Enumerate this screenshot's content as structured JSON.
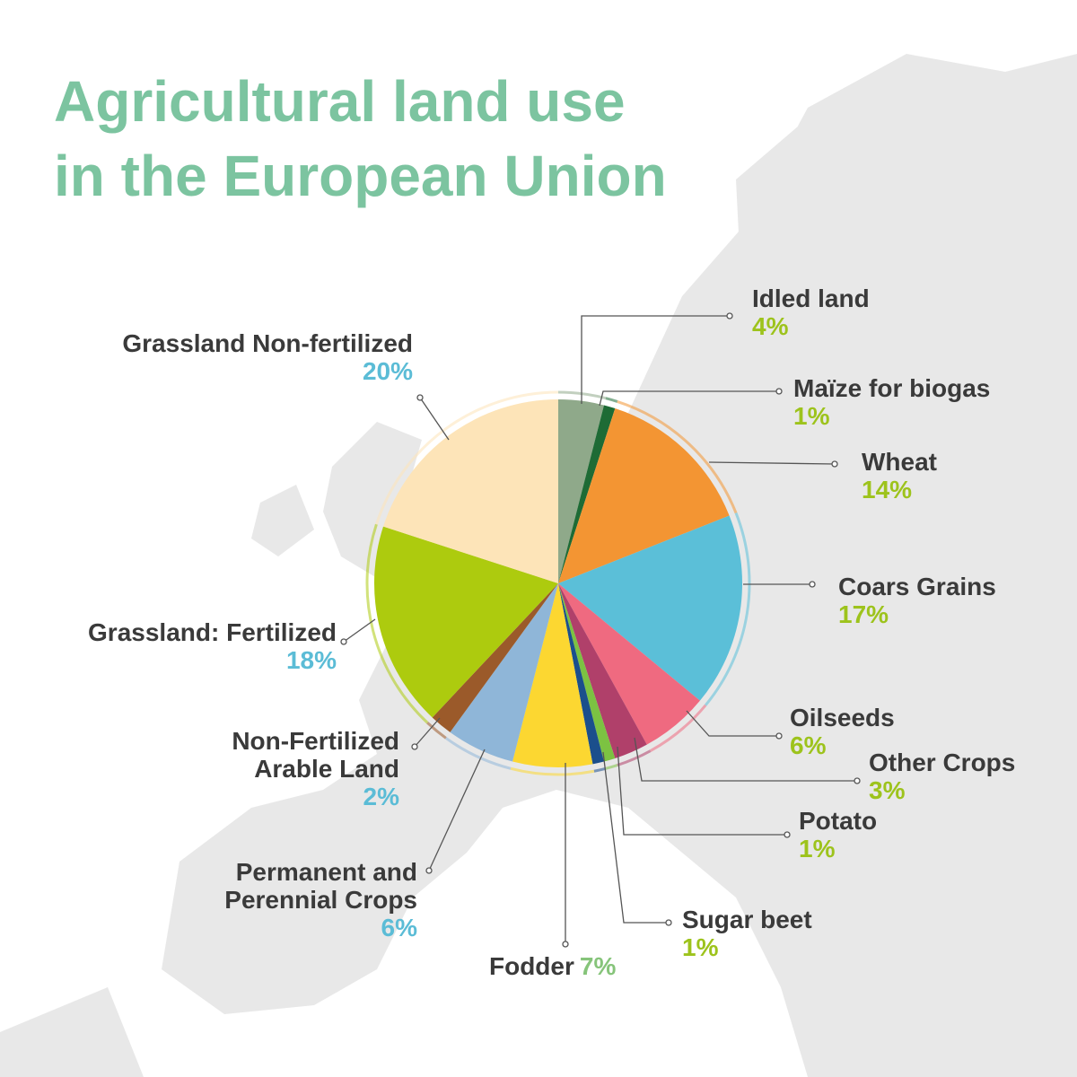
{
  "chart_data": {
    "type": "pie",
    "title": "Agricultural land use",
    "subtitle": "in the European Union",
    "categories": [
      "Idled land",
      "Maïze for biogas",
      "Wheat",
      "Coars Grains",
      "Oilseeds",
      "Other Crops",
      "Potato",
      "Sugar beet",
      "Fodder",
      "Permanent and Perennial Crops",
      "Non-Fertilized Arable Land",
      "Grassland: Fertilized",
      "Grassland Non-fertilized"
    ],
    "values": [
      4,
      1,
      14,
      17,
      6,
      3,
      1,
      1,
      7,
      6,
      2,
      18,
      20
    ],
    "value_labels": [
      "4%",
      "1%",
      "14%",
      "17%",
      "6%",
      "3%",
      "1%",
      "1%",
      "7%",
      "6%",
      "2%",
      "18%",
      "20%"
    ],
    "colors": [
      "#8fa98a",
      "#1e6b35",
      "#f39533",
      "#5bbfd8",
      "#ef6a80",
      "#b0406a",
      "#7cc242",
      "#1b4f8c",
      "#fcd731",
      "#8fb6d8",
      "#9b5a2a",
      "#adcb0e",
      "#fde4b8"
    ]
  }
}
